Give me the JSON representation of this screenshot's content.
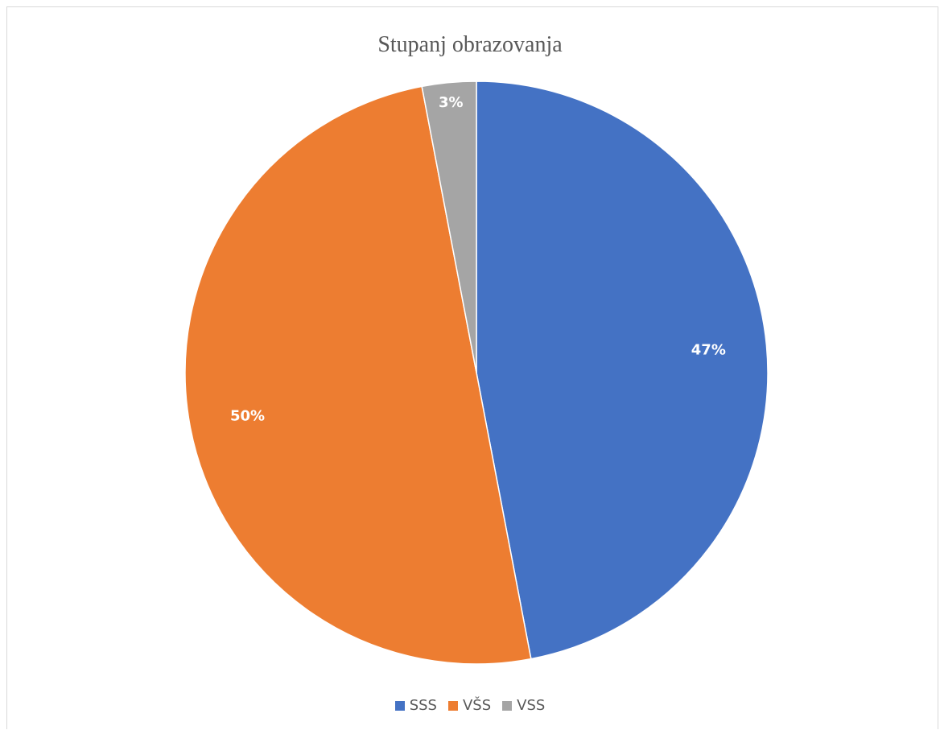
{
  "chart_data": {
    "type": "pie",
    "title": "Stupanj obrazovanja",
    "categories": [
      "SSS",
      "VŠS",
      "VSS"
    ],
    "values": [
      47,
      50,
      3
    ],
    "data_labels": [
      "47%",
      "50%",
      "3%"
    ],
    "colors": [
      "#4472C4",
      "#ED7D31",
      "#A5A5A5"
    ],
    "legend_position": "bottom"
  }
}
